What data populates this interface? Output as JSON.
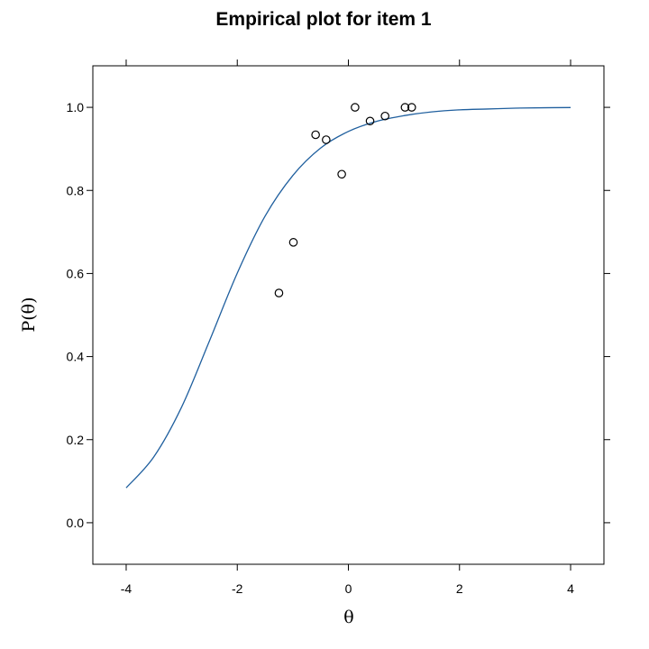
{
  "chart_data": {
    "type": "scatter",
    "title": "Empirical plot for item 1",
    "xlabel": "θ",
    "ylabel": "P(θ)",
    "xlim": [
      -4.6,
      4.6
    ],
    "ylim": [
      -0.1,
      1.1
    ],
    "x_ticks": [
      -4,
      -2,
      0,
      2,
      4
    ],
    "y_ticks": [
      0.0,
      0.2,
      0.4,
      0.6,
      0.8,
      1.0
    ],
    "x_tick_labels": [
      "-4",
      "-2",
      "0",
      "2",
      "4"
    ],
    "y_tick_labels": [
      "0.0",
      "0.2",
      "0.4",
      "0.6",
      "0.8",
      "1.0"
    ],
    "grid": false,
    "series": [
      {
        "kind": "points",
        "marker": "open-circle",
        "color": "#000000",
        "points": [
          {
            "x": -1.25,
            "y": 0.553
          },
          {
            "x": -0.99,
            "y": 0.675
          },
          {
            "x": -0.59,
            "y": 0.934
          },
          {
            "x": -0.4,
            "y": 0.922
          },
          {
            "x": -0.12,
            "y": 0.839
          },
          {
            "x": 0.12,
            "y": 1.0
          },
          {
            "x": 0.39,
            "y": 0.967
          },
          {
            "x": 0.66,
            "y": 0.979
          },
          {
            "x": 1.02,
            "y": 1.0
          },
          {
            "x": 1.14,
            "y": 1.0
          }
        ]
      },
      {
        "kind": "curve",
        "color": "#1f5f9e",
        "x": [
          -4.0,
          -3.5,
          -3.0,
          -2.5,
          -2.0,
          -1.5,
          -1.0,
          -0.5,
          0.0,
          0.5,
          1.0,
          1.5,
          2.0,
          2.5,
          3.0,
          3.5,
          4.0
        ],
        "y": [
          0.084,
          0.159,
          0.279,
          0.438,
          0.601,
          0.738,
          0.836,
          0.902,
          0.942,
          0.966,
          0.98,
          0.989,
          0.994,
          0.996,
          0.998,
          0.999,
          0.9995
        ]
      }
    ]
  }
}
